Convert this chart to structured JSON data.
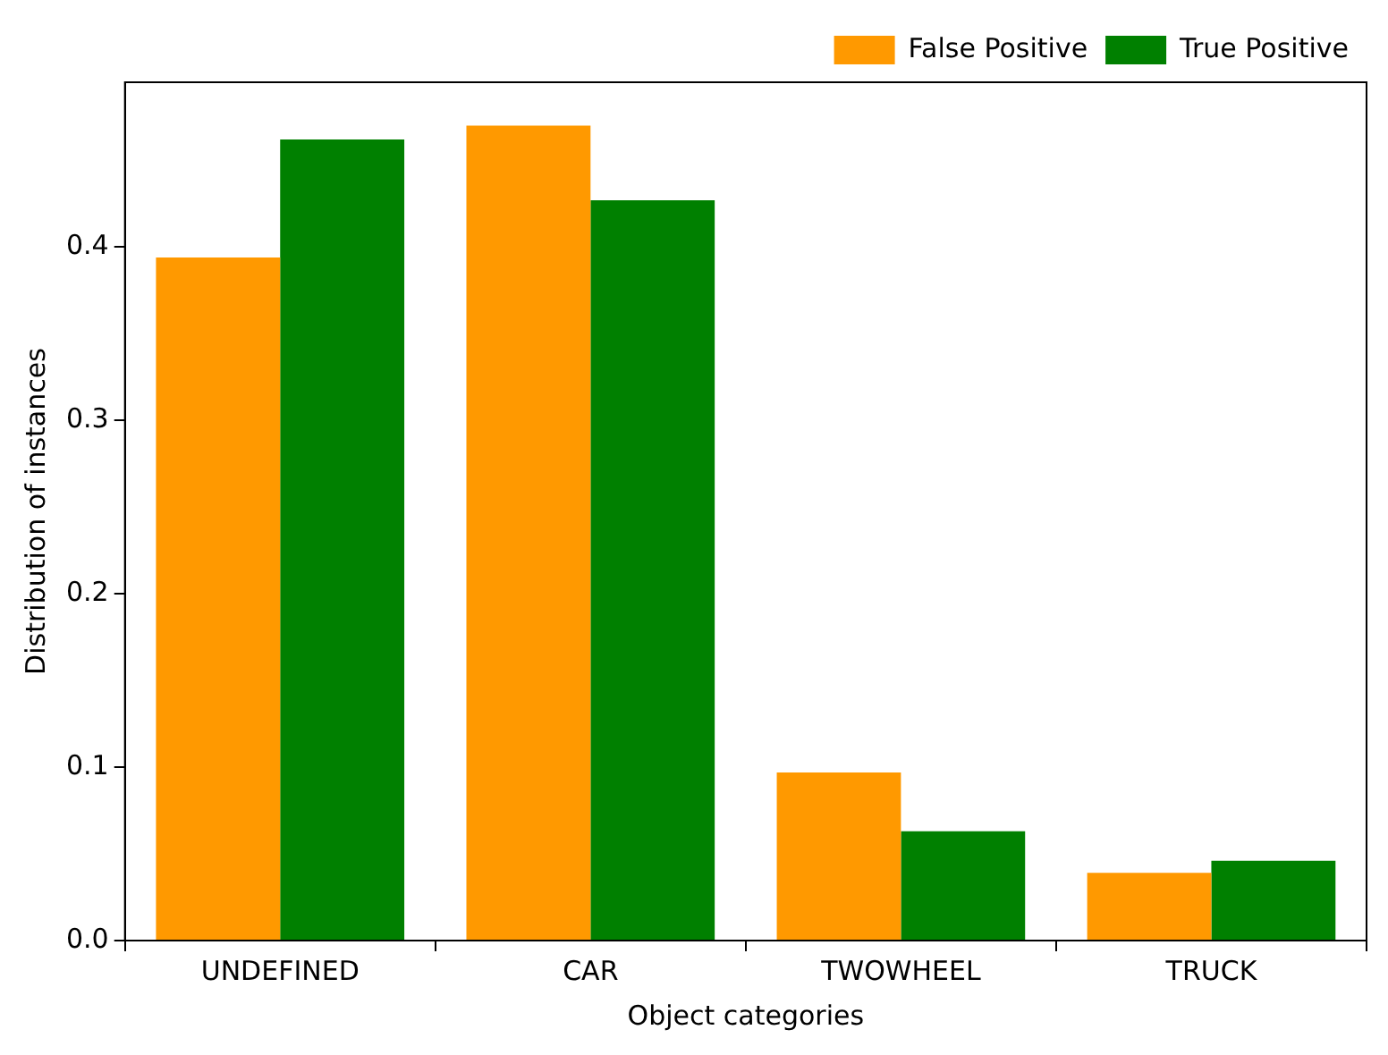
{
  "chart_data": {
    "type": "bar",
    "xlabel": "Object categories",
    "ylabel": "Distribution of instances",
    "categories": [
      "UNDEFINED",
      "CAR",
      "TWOWHEEL",
      "TRUCK"
    ],
    "series": [
      {
        "name": "False Positive",
        "color": "#ff9900",
        "values": [
          0.394,
          0.47,
          0.097,
          0.039
        ]
      },
      {
        "name": "True Positive",
        "color": "#008000",
        "values": [
          0.462,
          0.427,
          0.063,
          0.046
        ]
      }
    ],
    "ylim": [
      0,
      0.495
    ],
    "yticks": [
      {
        "value": 0,
        "label": "0.0"
      },
      0.1,
      0.2,
      0.3,
      0.4
    ],
    "grid": false,
    "legend": "top right"
  }
}
